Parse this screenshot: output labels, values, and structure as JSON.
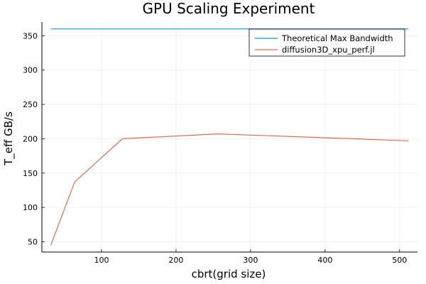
{
  "chart_data": {
    "type": "line",
    "title": "GPU Scaling Experiment",
    "xlabel": "cbrt(grid size)",
    "ylabel": "T_eff GB/s",
    "xlim": [
      20,
      524
    ],
    "ylim": [
      35,
      370
    ],
    "xticks": [
      100,
      200,
      300,
      400,
      500
    ],
    "yticks": [
      50,
      100,
      150,
      200,
      250,
      300,
      350
    ],
    "grid": true,
    "legend_position": "top-right",
    "series": [
      {
        "name": "Theoretical Max Bandwidth",
        "color": "#009AFA",
        "x": [
          32,
          64,
          128,
          256,
          512
        ],
        "y": [
          360,
          360,
          360,
          360,
          360
        ]
      },
      {
        "name": "diffusion3D_xpu_perf.jl",
        "color": "#E26F46",
        "x": [
          32,
          64,
          128,
          256,
          512
        ],
        "y": [
          45,
          137,
          200,
          207,
          197
        ]
      }
    ]
  }
}
